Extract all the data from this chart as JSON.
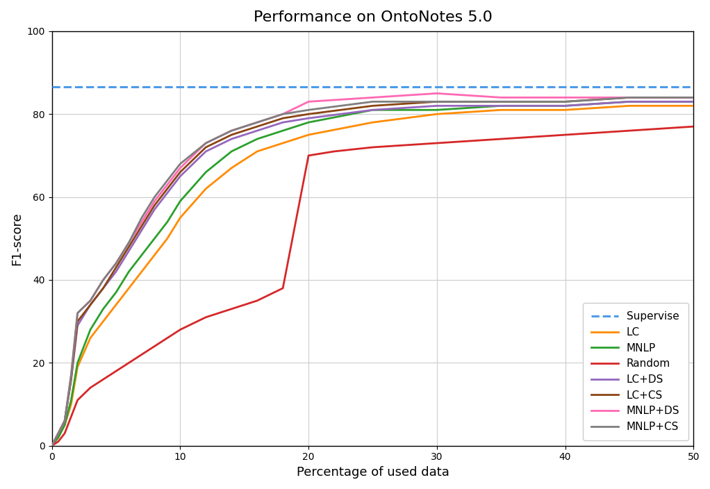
{
  "title": "Performance on OntoNotes 5.0",
  "xlabel": "Percentage of used data",
  "ylabel": "F1-score",
  "xlim": [
    0,
    50
  ],
  "ylim": [
    0,
    100
  ],
  "xticks": [
    0,
    10,
    20,
    30,
    40,
    50
  ],
  "yticks": [
    0,
    20,
    40,
    60,
    80,
    100
  ],
  "supervise_value": 86.5,
  "supervise_color": "#4C9BE8",
  "lines": {
    "LC": {
      "color": "#FF8C00",
      "x": [
        0,
        0.5,
        1,
        1.5,
        2,
        3,
        4,
        5,
        6,
        7,
        8,
        9,
        10,
        12,
        14,
        16,
        18,
        20,
        25,
        30,
        35,
        40,
        45,
        50
      ],
      "y": [
        0,
        2,
        5,
        10,
        19,
        26,
        30,
        34,
        38,
        42,
        46,
        50,
        55,
        62,
        67,
        71,
        73,
        75,
        78,
        80,
        81,
        81,
        82,
        82
      ]
    },
    "MNLP": {
      "color": "#2CA02C",
      "x": [
        0,
        0.5,
        1,
        1.5,
        2,
        3,
        4,
        5,
        6,
        7,
        8,
        9,
        10,
        12,
        14,
        16,
        18,
        20,
        25,
        30,
        35,
        40,
        45,
        50
      ],
      "y": [
        0,
        2,
        5,
        11,
        20,
        28,
        33,
        37,
        42,
        46,
        50,
        54,
        59,
        66,
        71,
        74,
        76,
        78,
        81,
        81,
        82,
        82,
        83,
        83
      ]
    },
    "Random": {
      "color": "#D62728",
      "x": [
        0,
        0.5,
        1,
        1.5,
        2,
        3,
        4,
        5,
        6,
        7,
        8,
        9,
        10,
        12,
        14,
        16,
        18,
        20,
        22,
        25,
        30,
        35,
        40,
        45,
        50
      ],
      "y": [
        0,
        1,
        3,
        7,
        11,
        14,
        16,
        18,
        20,
        22,
        24,
        26,
        28,
        31,
        33,
        35,
        38,
        70,
        71,
        72,
        73,
        74,
        75,
        76,
        77
      ]
    },
    "LC+DS": {
      "color": "#9467BD",
      "x": [
        0,
        0.5,
        1,
        1.5,
        2,
        3,
        4,
        5,
        6,
        7,
        8,
        9,
        10,
        12,
        14,
        16,
        18,
        20,
        25,
        30,
        35,
        40,
        45,
        50
      ],
      "y": [
        0,
        3,
        6,
        16,
        29,
        34,
        38,
        42,
        47,
        52,
        57,
        61,
        65,
        71,
        74,
        76,
        78,
        79,
        81,
        82,
        82,
        82,
        83,
        83
      ]
    },
    "LC+CS": {
      "color": "#8B4513",
      "x": [
        0,
        0.5,
        1,
        1.5,
        2,
        3,
        4,
        5,
        6,
        7,
        8,
        9,
        10,
        12,
        14,
        16,
        18,
        20,
        25,
        30,
        35,
        40,
        45,
        50
      ],
      "y": [
        0,
        3,
        6,
        16,
        30,
        34,
        38,
        43,
        48,
        53,
        58,
        62,
        66,
        72,
        75,
        77,
        79,
        80,
        82,
        83,
        83,
        83,
        84,
        84
      ]
    },
    "MNLP+DS": {
      "color": "#FF69B4",
      "x": [
        0,
        0.5,
        1,
        1.5,
        2,
        3,
        4,
        5,
        6,
        7,
        8,
        9,
        10,
        12,
        14,
        16,
        18,
        20,
        25,
        30,
        35,
        40,
        45,
        50
      ],
      "y": [
        0,
        3,
        6,
        17,
        32,
        35,
        40,
        44,
        49,
        54,
        59,
        63,
        67,
        73,
        76,
        78,
        80,
        83,
        84,
        85,
        84,
        84,
        84,
        84
      ]
    },
    "MNLP+CS": {
      "color": "#7F7F7F",
      "x": [
        0,
        0.5,
        1,
        1.5,
        2,
        3,
        4,
        5,
        6,
        7,
        8,
        9,
        10,
        12,
        14,
        16,
        18,
        20,
        25,
        30,
        35,
        40,
        45,
        50
      ],
      "y": [
        0,
        3,
        6,
        17,
        32,
        35,
        40,
        44,
        49,
        55,
        60,
        64,
        68,
        73,
        76,
        78,
        80,
        81,
        83,
        83,
        83,
        83,
        84,
        84
      ]
    }
  },
  "figsize": [
    10.22,
    7.04
  ],
  "dpi": 100
}
